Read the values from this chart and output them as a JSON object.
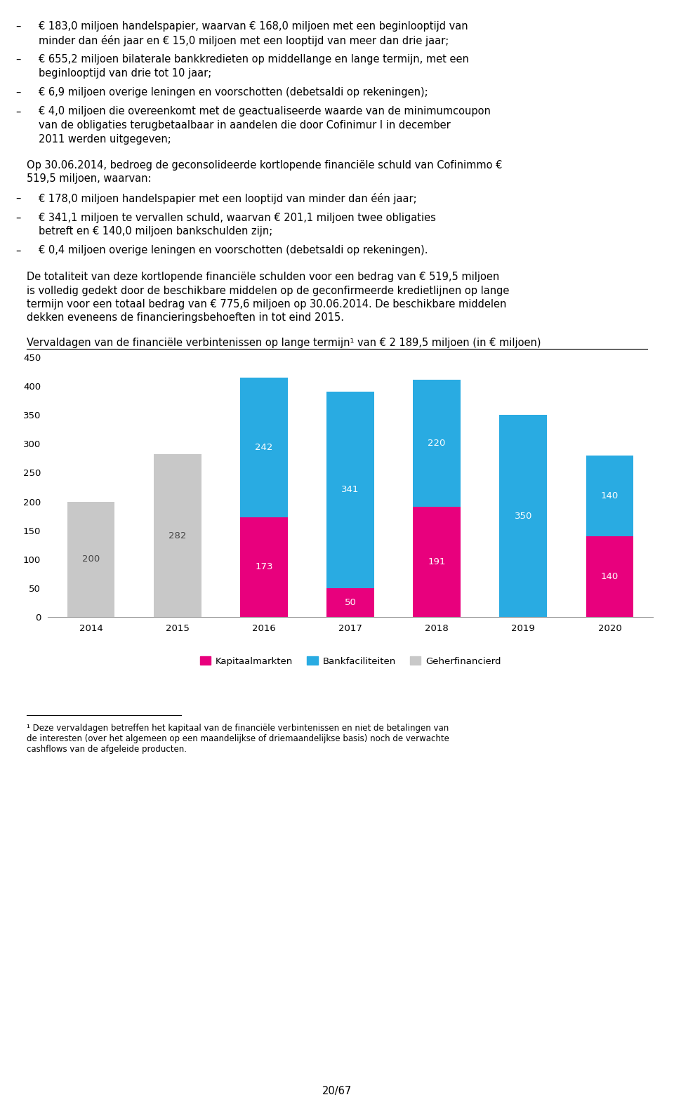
{
  "years": [
    "2014",
    "2015",
    "2016",
    "2017",
    "2018",
    "2019",
    "2020"
  ],
  "kapitaalmarkten": [
    0,
    0,
    173,
    50,
    191,
    0,
    140
  ],
  "bankfaciliteiten": [
    0,
    0,
    242,
    341,
    220,
    350,
    140
  ],
  "geherfinanciert": [
    200,
    282,
    0,
    0,
    0,
    0,
    0
  ],
  "color_kapitaalmarkten": "#E8007D",
  "color_bankfaciliteiten": "#29ABE2",
  "color_geherfinanciert": "#C8C8C8",
  "ylim_max": 450,
  "ytick_step": 50,
  "page_number": "20/67",
  "chart_title": "Vervaldagen van de financiële verbintenissen op lange termijn¹ van € 2 189,5 miljoen (in € miljoen)",
  "legend_labels": [
    "Kapitaalmarkten",
    "Bankfaciliteiten",
    "Geherfinancierd"
  ],
  "footnote_line": "¹ Deze vervaldagen betreffen het kapitaal van de financiële verbintenissen en niet de betalingen van de interesten (over het algemeen op een maandelijkse of driemaandelijkse basis) noch de verwachte cashflows van de afgeleide producten.",
  "paragraphs": [
    {
      "bullet": true,
      "text": "€ 183,0 miljoen handelspapier, waarvan € 168,0 miljoen met een beginlooptijd van minder dan één jaar en € 15,0 miljoen met een looptijd van meer dan drie jaar;"
    },
    {
      "bullet": true,
      "text": "€ 655,2 miljoen bilaterale bankkredieten op middellange en lange termijn, met een beginlooptijd van drie tot 10 jaar;"
    },
    {
      "bullet": true,
      "text": "€ 6,9 miljoen overige leningen en voorschotten (debetsaldi op rekeningen);"
    },
    {
      "bullet": true,
      "text": "€ 4,0 miljoen die overeenkomt met de geactualiseerde waarde van de minimumcoupon van de obligaties terugbetaalbaar in aandelen die door Cofinimur I in december 2011 werden uitgegeven;"
    },
    {
      "bullet": false,
      "gap": true,
      "text": "Op 30.06.2014, bedroeg de geconsolideerde kortlopende financiële schuld van Cofinimmo € 519,5 miljoen, waarvan:"
    },
    {
      "bullet": true,
      "text": "€ 178,0 miljoen handelspapier met een looptijd van minder dan één jaar;"
    },
    {
      "bullet": true,
      "text": "€ 341,1 miljoen te vervallen schuld, waarvan € 201,1 miljoen twee obligaties betreft en € 140,0 miljoen bankschulden zijn;"
    },
    {
      "bullet": true,
      "text": "€ 0,4 miljoen overige leningen en voorschotten (debetsaldi op rekeningen)."
    },
    {
      "bullet": false,
      "gap": true,
      "text": "De totaliteit van deze kortlopende financiële schulden voor een bedrag van € 519,5 miljoen is volledig gedekt door de beschikbare middelen op de geconfirmeerde kredietlijnen op lange termijn voor een totaal bedrag van € 775,6 miljoen op 30.06.2014. De beschikbare middelen dekken eveneens de financieringsbehoeften in tot eind 2015."
    }
  ]
}
